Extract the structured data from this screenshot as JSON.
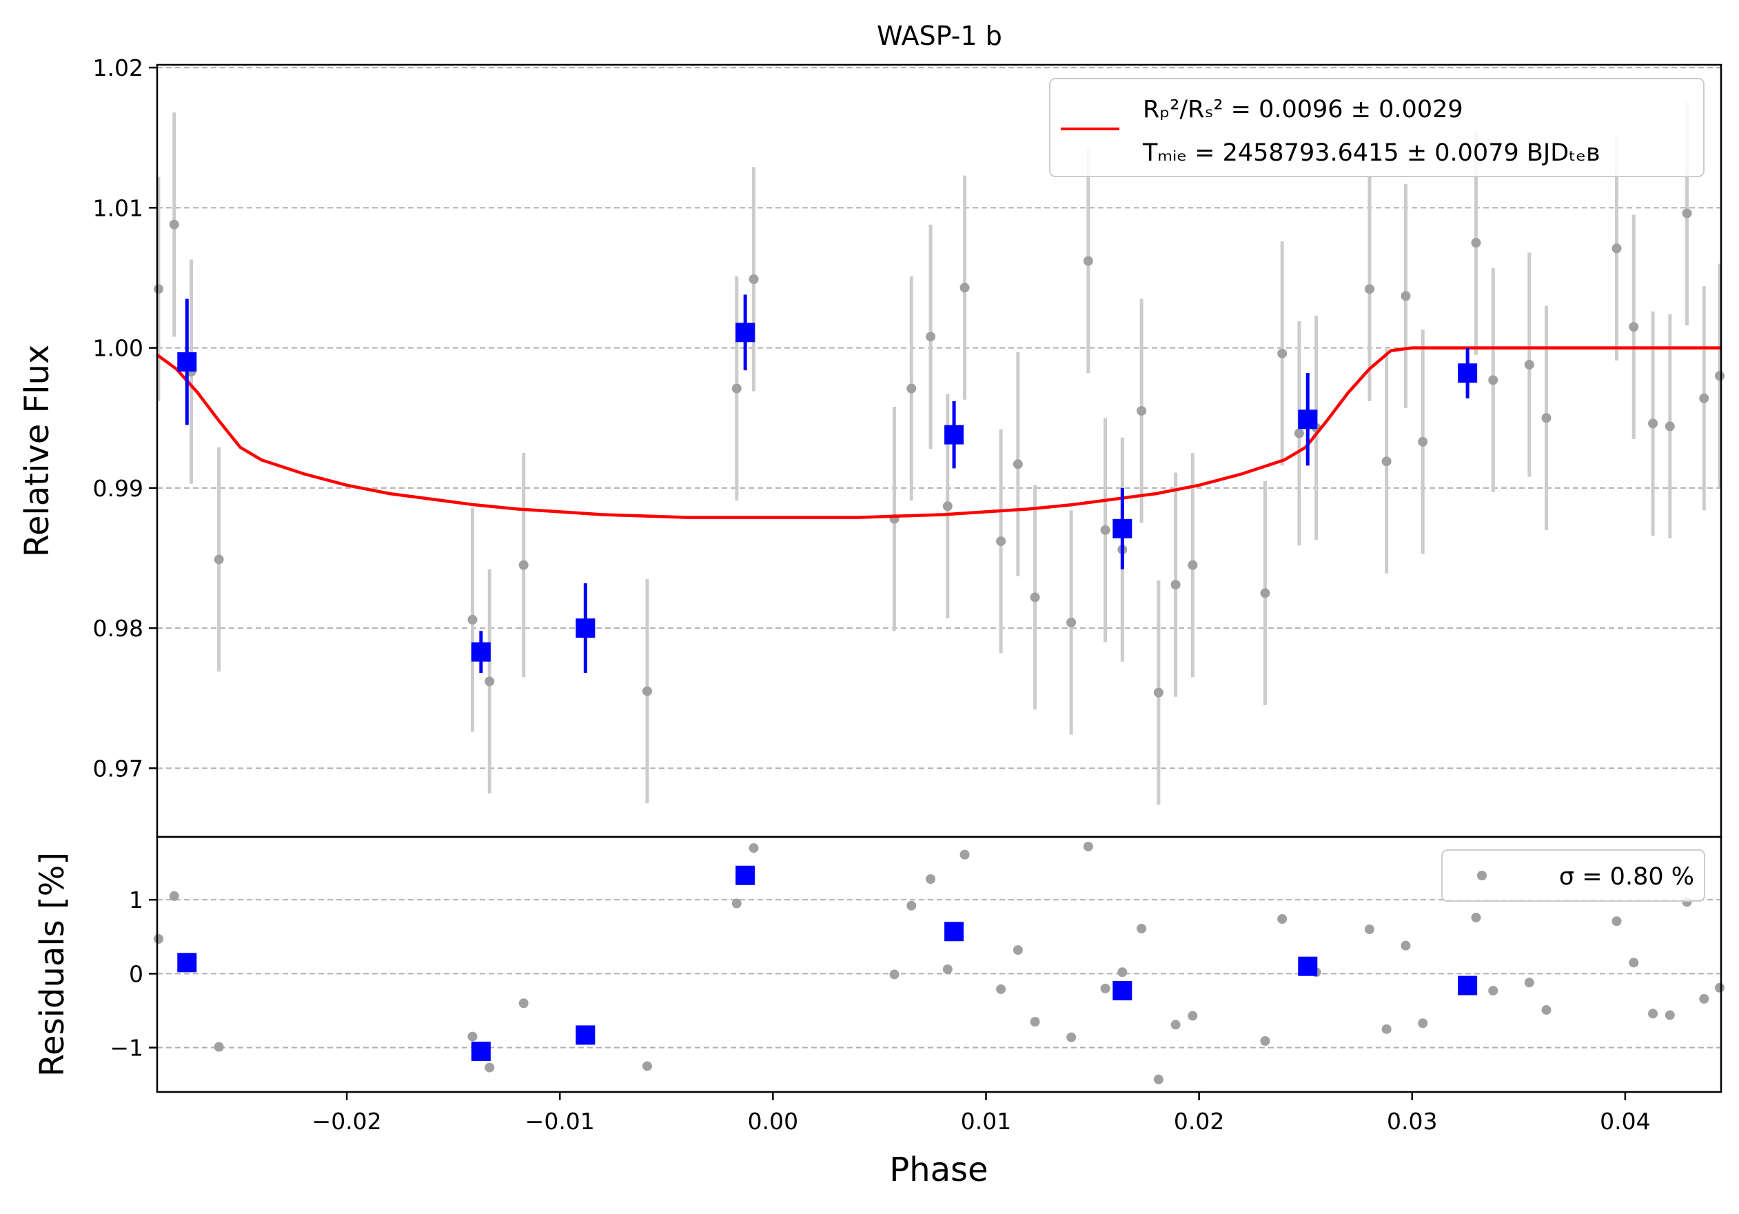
{
  "chart_data": {
    "type": "scatter",
    "title": "WASP-1 b",
    "xlabel": "Phase",
    "xlim": [
      -0.0289,
      0.0445
    ],
    "xticks": [
      -0.02,
      -0.01,
      0.0,
      0.01,
      0.02,
      0.03,
      0.04
    ],
    "xtick_labels": [
      "−0.02",
      "−0.01",
      "0.00",
      "0.01",
      "0.02",
      "0.03",
      "0.04"
    ],
    "top_panel": {
      "ylabel": "Relative Flux",
      "ylim": [
        0.9651,
        1.0202
      ],
      "yticks": [
        0.97,
        0.98,
        0.99,
        1.0,
        1.01,
        1.02
      ],
      "ytick_labels": [
        "0.97",
        "0.98",
        "0.99",
        "1.00",
        "1.01",
        "1.02"
      ],
      "grid": "horizontal dashed",
      "legend": {
        "placement": "top-right",
        "line1": "Rₚ²/Rₛ² = 0.0096 ± 0.0029",
        "line2": "Tₘᵢₑ = 2458793.6415 ± 0.0079 BJDₜₑʙ"
      },
      "series": [
        {
          "kind": "raw",
          "color": "#a0a0a0",
          "points": [
            [
              -0.0289,
              1.0042,
              0.008
            ],
            [
              -0.0281,
              1.0088,
              0.008
            ],
            [
              -0.0273,
              0.9983,
              0.008
            ],
            [
              -0.026,
              0.9849,
              0.008
            ],
            [
              -0.0141,
              0.9806,
              0.008
            ],
            [
              -0.0133,
              0.9762,
              0.008
            ],
            [
              -0.0117,
              0.9845,
              0.008
            ],
            [
              -0.0059,
              0.9755,
              0.008
            ],
            [
              -0.0017,
              0.9971,
              0.008
            ],
            [
              -0.0009,
              1.0049,
              0.008
            ],
            [
              0.0057,
              0.9878,
              0.008
            ],
            [
              0.0065,
              0.9971,
              0.008
            ],
            [
              0.0074,
              1.0008,
              0.008
            ],
            [
              0.0082,
              0.9887,
              0.008
            ],
            [
              0.009,
              1.0043,
              0.008
            ],
            [
              0.0107,
              0.9862,
              0.008
            ],
            [
              0.0115,
              0.9917,
              0.008
            ],
            [
              0.0123,
              0.9822,
              0.008
            ],
            [
              0.014,
              0.9804,
              0.008
            ],
            [
              0.0148,
              1.0062,
              0.008
            ],
            [
              0.0156,
              0.987,
              0.008
            ],
            [
              0.0164,
              0.9856,
              0.008
            ],
            [
              0.0173,
              0.9955,
              0.008
            ],
            [
              0.0181,
              0.9754,
              0.008
            ],
            [
              0.0189,
              0.9831,
              0.008
            ],
            [
              0.0197,
              0.9845,
              0.008
            ],
            [
              0.0231,
              0.9825,
              0.008
            ],
            [
              0.0239,
              0.9996,
              0.008
            ],
            [
              0.0247,
              0.9939,
              0.008
            ],
            [
              0.0255,
              0.9943,
              0.008
            ],
            [
              0.028,
              1.0042,
              0.008
            ],
            [
              0.0288,
              0.9919,
              0.008
            ],
            [
              0.0297,
              1.0037,
              0.008
            ],
            [
              0.0305,
              0.9933,
              0.008
            ],
            [
              0.033,
              1.0075,
              0.008
            ],
            [
              0.0338,
              0.9977,
              0.008
            ],
            [
              0.0355,
              0.9988,
              0.008
            ],
            [
              0.0363,
              0.995,
              0.008
            ],
            [
              0.0396,
              1.0071,
              0.008
            ],
            [
              0.0404,
              1.0015,
              0.008
            ],
            [
              0.0413,
              0.9946,
              0.008
            ],
            [
              0.0421,
              0.9944,
              0.008
            ],
            [
              0.0429,
              1.0096,
              0.008
            ],
            [
              0.0437,
              0.9964,
              0.008
            ],
            [
              0.0445,
              0.998,
              0.008
            ]
          ]
        },
        {
          "kind": "binned",
          "color": "#0000ff",
          "points": [
            [
              -0.0275,
              0.999,
              0.0045
            ],
            [
              -0.0137,
              0.9783,
              0.0015
            ],
            [
              -0.0088,
              0.98,
              0.0032
            ],
            [
              -0.0013,
              1.0011,
              0.0027
            ],
            [
              0.0085,
              0.9938,
              0.0024
            ],
            [
              0.0164,
              0.9871,
              0.0029
            ],
            [
              0.0251,
              0.9949,
              0.0033
            ],
            [
              0.0326,
              0.9982,
              0.0018
            ]
          ]
        },
        {
          "kind": "model",
          "color": "#ff0000",
          "points": [
            [
              -0.0289,
              0.9995
            ],
            [
              -0.028,
              0.9985
            ],
            [
              -0.027,
              0.9968
            ],
            [
              -0.026,
              0.9948
            ],
            [
              -0.025,
              0.9929
            ],
            [
              -0.024,
              0.992
            ],
            [
              -0.022,
              0.991
            ],
            [
              -0.02,
              0.9902
            ],
            [
              -0.018,
              0.9896
            ],
            [
              -0.016,
              0.9892
            ],
            [
              -0.014,
              0.9888
            ],
            [
              -0.012,
              0.9885
            ],
            [
              -0.01,
              0.9883
            ],
            [
              -0.008,
              0.9881
            ],
            [
              -0.006,
              0.988
            ],
            [
              -0.004,
              0.9879
            ],
            [
              -0.002,
              0.9879
            ],
            [
              0.0,
              0.9879
            ],
            [
              0.002,
              0.9879
            ],
            [
              0.004,
              0.9879
            ],
            [
              0.006,
              0.988
            ],
            [
              0.008,
              0.9881
            ],
            [
              0.01,
              0.9883
            ],
            [
              0.012,
              0.9885
            ],
            [
              0.014,
              0.9888
            ],
            [
              0.016,
              0.9892
            ],
            [
              0.018,
              0.9896
            ],
            [
              0.02,
              0.9902
            ],
            [
              0.022,
              0.991
            ],
            [
              0.024,
              0.992
            ],
            [
              0.025,
              0.9929
            ],
            [
              0.026,
              0.9948
            ],
            [
              0.027,
              0.9968
            ],
            [
              0.028,
              0.9985
            ],
            [
              0.029,
              0.9998
            ],
            [
              0.03,
              1.0
            ],
            [
              0.035,
              1.0
            ],
            [
              0.04,
              1.0
            ],
            [
              0.0445,
              1.0
            ]
          ]
        }
      ]
    },
    "bottom_panel": {
      "ylabel": "Residuals [%]",
      "ylim": [
        -1.6,
        1.85
      ],
      "yticks": [
        -1,
        0,
        1
      ],
      "ytick_labels": [
        "−1",
        "0",
        "1"
      ],
      "grid": "horizontal dashed",
      "legend": {
        "placement": "top-right",
        "text": "σ = 0.80 %"
      },
      "series": [
        {
          "kind": "raw",
          "color": "#a0a0a0",
          "points": [
            [
              -0.0289,
              0.47
            ],
            [
              -0.0281,
              1.05
            ],
            [
              -0.026,
              -0.99
            ],
            [
              -0.0141,
              -0.85
            ],
            [
              -0.0133,
              -1.27
            ],
            [
              -0.0117,
              -0.4
            ],
            [
              -0.0059,
              -1.25
            ],
            [
              -0.0017,
              0.95
            ],
            [
              -0.0009,
              1.7
            ],
            [
              0.0057,
              -0.01
            ],
            [
              0.0065,
              0.92
            ],
            [
              0.0074,
              1.28
            ],
            [
              0.0082,
              0.06
            ],
            [
              0.009,
              1.61
            ],
            [
              0.0107,
              -0.21
            ],
            [
              0.0115,
              0.32
            ],
            [
              0.0123,
              -0.65
            ],
            [
              0.014,
              -0.86
            ],
            [
              0.0148,
              1.72
            ],
            [
              0.0156,
              -0.2
            ],
            [
              0.0164,
              0.02
            ],
            [
              0.0173,
              0.61
            ],
            [
              0.0181,
              -1.43
            ],
            [
              0.0189,
              -0.69
            ],
            [
              0.0197,
              -0.57
            ],
            [
              0.0231,
              -0.91
            ],
            [
              0.0239,
              0.74
            ],
            [
              0.0255,
              0.02
            ],
            [
              0.028,
              0.6
            ],
            [
              0.0288,
              -0.75
            ],
            [
              0.0297,
              0.38
            ],
            [
              0.0305,
              -0.67
            ],
            [
              0.033,
              0.76
            ],
            [
              0.0338,
              -0.23
            ],
            [
              0.0355,
              -0.12
            ],
            [
              0.0363,
              -0.49
            ],
            [
              0.0396,
              0.71
            ],
            [
              0.0404,
              0.15
            ],
            [
              0.0413,
              -0.54
            ],
            [
              0.0421,
              -0.56
            ],
            [
              0.0429,
              0.97
            ],
            [
              0.0437,
              -0.34
            ],
            [
              0.0445,
              -0.19
            ]
          ]
        },
        {
          "kind": "binned",
          "color": "#0000ff",
          "points": [
            [
              -0.0275,
              0.15
            ],
            [
              -0.0137,
              -1.05
            ],
            [
              -0.0088,
              -0.83
            ],
            [
              -0.0013,
              1.33
            ],
            [
              0.0085,
              0.57
            ],
            [
              0.0164,
              -0.23
            ],
            [
              0.0251,
              0.1
            ],
            [
              0.0326,
              -0.16
            ]
          ]
        }
      ]
    }
  }
}
